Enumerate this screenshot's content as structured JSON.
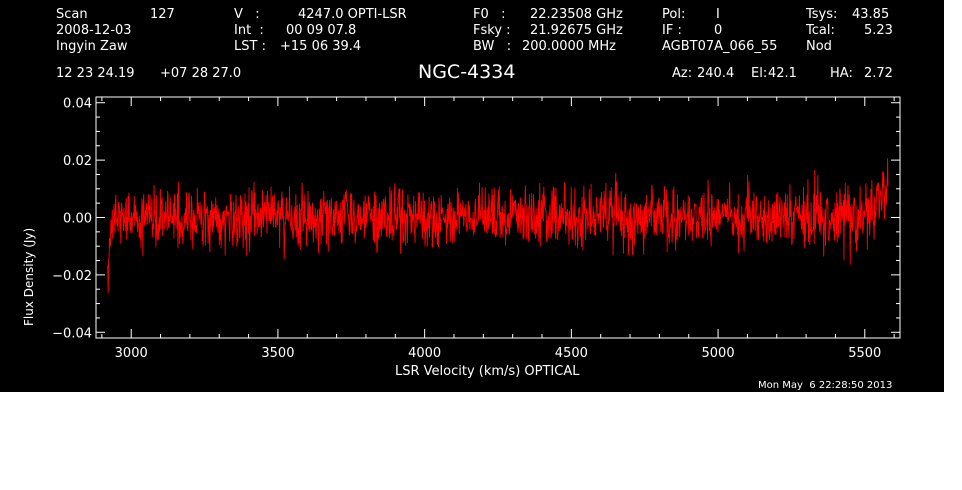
{
  "header": {
    "scan_label": "Scan",
    "scan_value": "127",
    "date": "2008-12-03",
    "observer": "Ingyin Zaw",
    "v_label": "V   :",
    "v_value": "4247.0 OPTI-LSR",
    "int_label": "Int  :",
    "int_value": "00 09 07.8",
    "lst_label": "LST :",
    "lst_value": "+15 06 39.4",
    "f0_label": "F0   :",
    "f0_value": "22.23508 GHz",
    "fsky_label": "Fsky :",
    "fsky_value": "21.92675 GHz",
    "bw_label": "BW   :",
    "bw_value": "200.0000 MHz",
    "pol_label": "Pol:",
    "pol_value": "I",
    "if_label": "IF :",
    "if_value": "0",
    "project": "AGBT07A_066_55",
    "tsys_label": "Tsys:",
    "tsys_value": "43.85",
    "tcal_label": "Tcal:",
    "tcal_value": "5.23",
    "mode": "Nod",
    "ra": "12 23 24.19",
    "dec": "+07 28 27.0",
    "source": "NGC-4334",
    "az_label": "Az:",
    "az_value": "240.4",
    "el_label": "El:",
    "el_value": "42.1",
    "ha_label": "HA:",
    "ha_value": "2.72"
  },
  "footer": {
    "timestamp": "Mon May  6 22:28:50 2013"
  },
  "colors": {
    "background": "#000000",
    "axes": "#ffffff",
    "trace": "#ff0000"
  },
  "chart_data": {
    "type": "line",
    "xlabel": "LSR Velocity (km/s) OPTICAL",
    "ylabel": "Flux Density (Jy)",
    "xlim": [
      2880,
      5620
    ],
    "ylim": [
      -0.042,
      0.042
    ],
    "xticks": [
      3000,
      3500,
      4000,
      4500,
      5000,
      5500
    ],
    "xtick_labels": [
      "3000",
      "3500",
      "4000",
      "4500",
      "5000",
      "5500"
    ],
    "yticks": [
      -0.04,
      -0.02,
      0.0,
      0.02,
      0.04
    ],
    "ytick_labels": [
      "−0.04",
      "−0.02",
      "0.00",
      "0.02",
      "0.04"
    ],
    "series": [
      {
        "x_range": [
          2920,
          5580
        ],
        "noise_rms": 0.0055,
        "x": [
          2920,
          2925,
          2935,
          2950,
          3000,
          3500,
          4000,
          4500,
          5000,
          5450,
          5520,
          5560,
          5575,
          5580
        ],
        "y": [
          -0.028,
          -0.012,
          -0.004,
          0.0,
          0.0,
          0.0,
          0.0,
          0.0,
          0.0,
          0.0,
          0.002,
          0.006,
          0.012,
          0.016
        ]
      }
    ]
  }
}
